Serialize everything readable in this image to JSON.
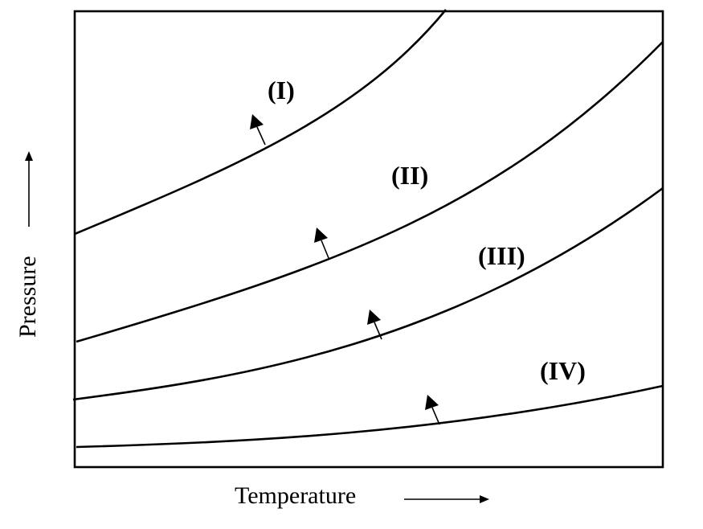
{
  "axes": {
    "x_label": "Temperature",
    "y_label": "Pressure"
  },
  "curves": [
    {
      "label": "(I)"
    },
    {
      "label": "(II)"
    },
    {
      "label": "(III)"
    },
    {
      "label": "(IV)"
    }
  ],
  "colors": {
    "stroke": "#000000",
    "background": "#ffffff"
  }
}
